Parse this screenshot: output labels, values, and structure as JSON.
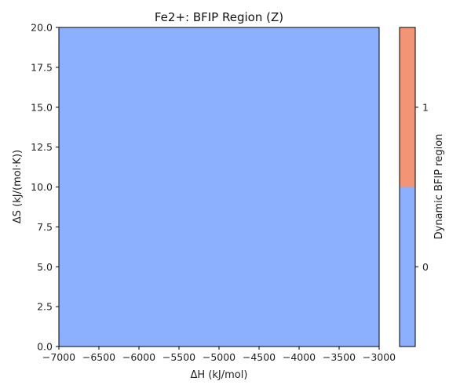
{
  "chart_data": {
    "type": "heatmap",
    "title": "Fe2+: BFIP Region (Z)",
    "xlabel": "ΔH (kJ/mol)",
    "ylabel": "ΔS (kJ/(mol·K))",
    "xlim": [
      -7000,
      -3000
    ],
    "ylim": [
      0,
      20
    ],
    "xticks": [
      -7000,
      -6500,
      -6000,
      -5500,
      -5000,
      -4500,
      -4000,
      -3500,
      -3000
    ],
    "xtick_labels": [
      "−7000",
      "−6500",
      "−6000",
      "−5500",
      "−5000",
      "−4500",
      "−4000",
      "−3500",
      "−3000"
    ],
    "yticks": [
      0,
      2.5,
      5,
      7.5,
      10,
      12.5,
      15,
      17.5,
      20
    ],
    "ytick_labels": [
      "0.0",
      "2.5",
      "5.0",
      "7.5",
      "10.0",
      "12.5",
      "15.0",
      "17.5",
      "20.0"
    ],
    "region": {
      "x": [
        -7000,
        -3000
      ],
      "y": [
        0,
        20
      ],
      "value": 0
    },
    "colorbar": {
      "label": "Dynamic BFIP region",
      "ticks": [
        0,
        1
      ],
      "tick_labels": [
        "0",
        "1"
      ],
      "range": [
        -0.5,
        1.5
      ],
      "levels": [
        {
          "from": -0.5,
          "to": 0.5,
          "color": "#8caffe"
        },
        {
          "from": 0.5,
          "to": 1.5,
          "color": "#f39474"
        }
      ]
    },
    "grid": false
  }
}
